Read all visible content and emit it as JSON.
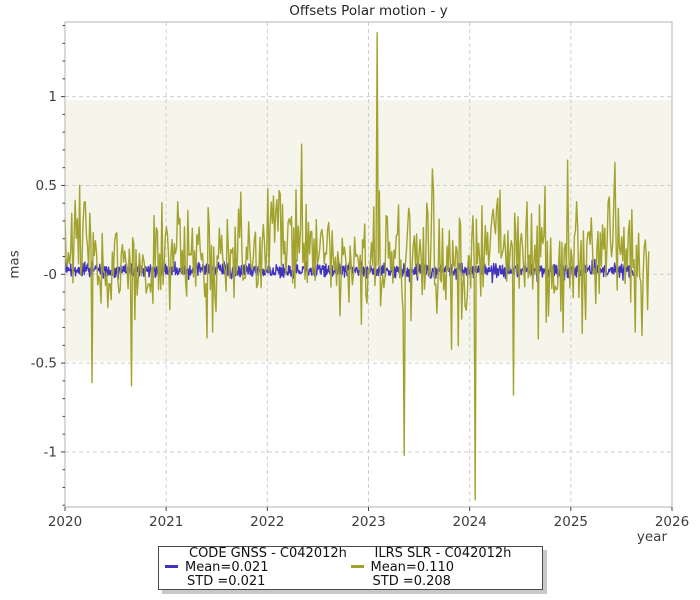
{
  "window_title": "Offsets Polar motion - y",
  "chart_data": {
    "type": "line",
    "title": "Offsets Polar motion - y",
    "xlabel": "year",
    "ylabel": "mas",
    "xlim": [
      2020,
      2026
    ],
    "ylim": [
      -1.31,
      1.42
    ],
    "xticks": [
      2020,
      2021,
      2022,
      2023,
      2024,
      2025,
      2026
    ],
    "yticks": [
      {
        "value": 1,
        "label": "1"
      },
      {
        "value": 0.5,
        "label": "0.5"
      },
      {
        "value": 0,
        "label": "-0"
      },
      {
        "value": -0.5,
        "label": "-0.5"
      },
      {
        "value": -1,
        "label": "-1"
      }
    ],
    "y_minor_tick_step": 0.1,
    "grid": {
      "shown": true,
      "style": "dashed",
      "color": "#cfcfcf"
    },
    "background_band": {
      "ymin": -0.49,
      "ymax": 0.98,
      "color": "#f5f5ec"
    },
    "series": [
      {
        "name": "CODE GNSS - C042012h",
        "color": "#4133c0",
        "mean": 0.021,
        "std": 0.021,
        "x_start": 2020.0,
        "x_end": 2025.62,
        "points_per_year": 230,
        "seed": 99,
        "noise_profile": "tight-zero"
      },
      {
        "name": "ILRS SLR - C042012h",
        "color": "#a2a22e",
        "mean": 0.11,
        "std": 0.208,
        "x_start": 2020.0,
        "x_end": 2025.77,
        "points_per_year": 90,
        "seed": 1337,
        "noise_profile": "broad",
        "notable_outliers": [
          {
            "x": 2020.27,
            "y": -0.61
          },
          {
            "x": 2023.09,
            "y": 1.36
          },
          {
            "x": 2023.35,
            "y": -1.02
          },
          {
            "x": 2024.06,
            "y": -1.27
          },
          {
            "x": 2024.43,
            "y": -0.68
          }
        ]
      }
    ],
    "legend": {
      "position": "below-axis-center",
      "entries": [
        {
          "name": "CODE GNSS - C042012h",
          "mean_label": "Mean=0.021",
          "std_label": "STD =0.021",
          "color": "#4133c0"
        },
        {
          "name": "ILRS SLR - C042012h",
          "mean_label": "Mean=0.110",
          "std_label": "STD =0.208",
          "color": "#a2a22e"
        }
      ]
    }
  }
}
